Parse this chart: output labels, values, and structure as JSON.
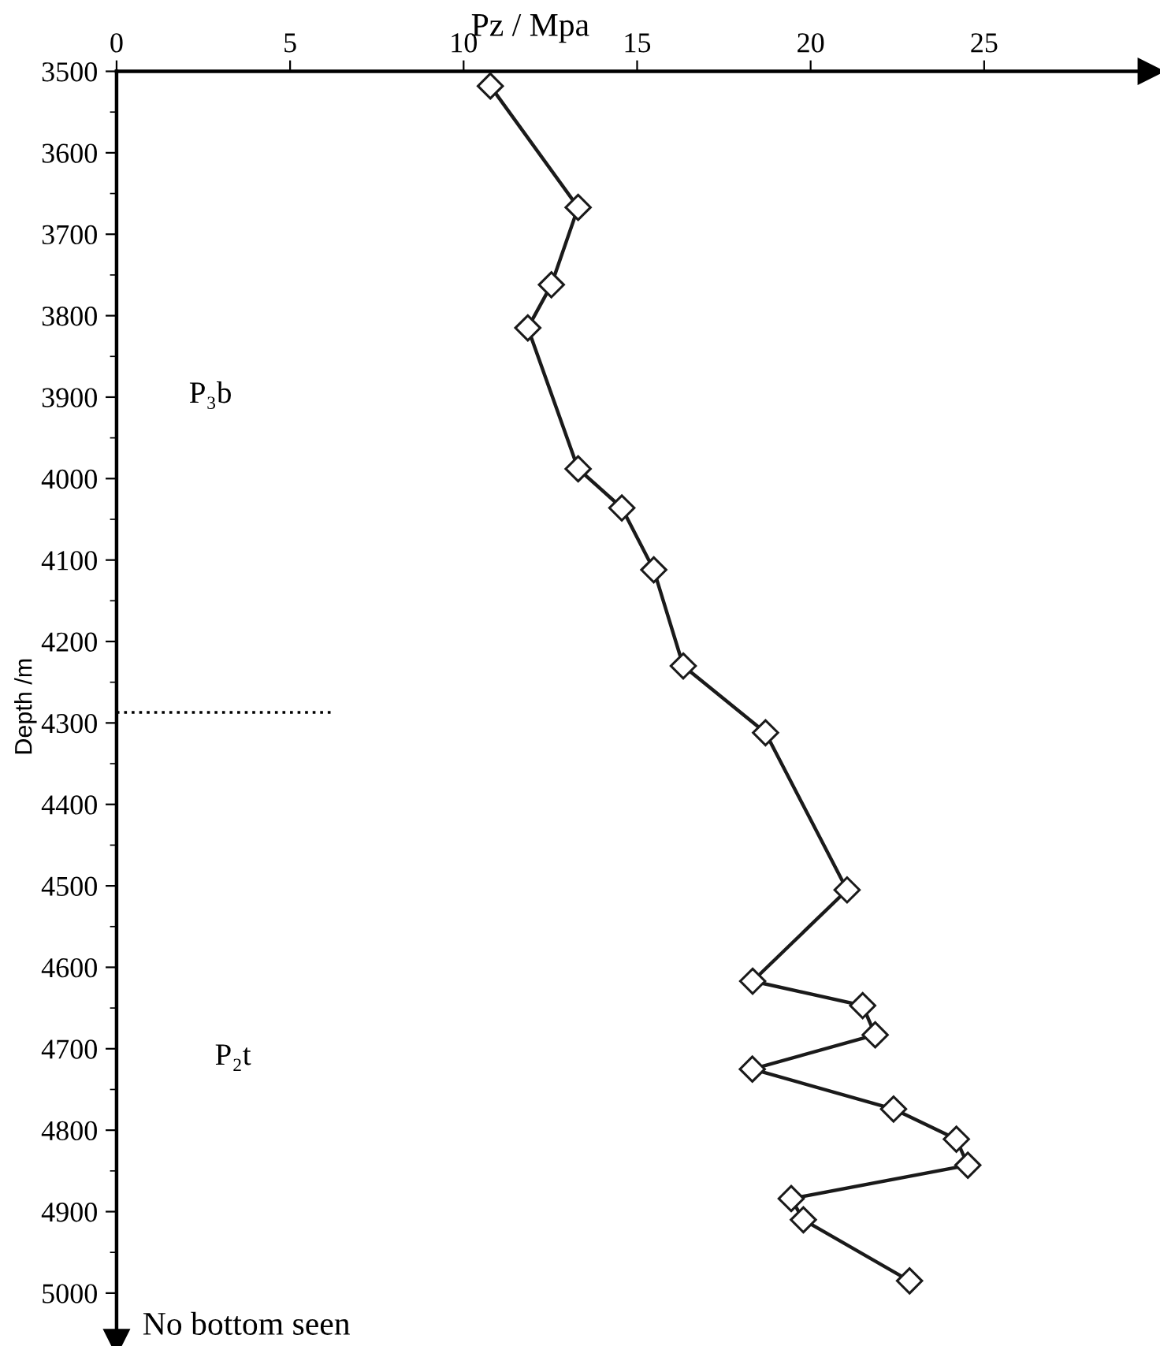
{
  "chart_data": {
    "type": "line",
    "xlabel": "Pz / Mpa",
    "ylabel": "Depth /m",
    "x": [
      10.77,
      13.3,
      12.53,
      11.85,
      13.3,
      14.56,
      15.48,
      16.33,
      18.7,
      21.05,
      18.33,
      21.5,
      21.86,
      18.32,
      22.39,
      24.2,
      24.53,
      19.44,
      19.79,
      22.85
    ],
    "values": [
      3518,
      3667,
      3762,
      3815,
      3988,
      4036,
      4112,
      4230,
      4312,
      4505,
      4617,
      4647,
      4683,
      4725,
      4774,
      4811,
      4843,
      4884,
      4910,
      4985
    ],
    "color": "#1a1a1a",
    "marker": "diamond",
    "line_style": "solid",
    "xlim": [
      0,
      29.8
    ],
    "xticks": [
      0,
      5,
      10,
      15,
      20,
      25
    ],
    "ylim": [
      5060,
      3500
    ],
    "yticks": [
      3500,
      3600,
      3700,
      3800,
      3900,
      4000,
      4100,
      4200,
      4300,
      4400,
      4500,
      4600,
      4700,
      4800,
      4900,
      5000
    ],
    "ref_lines": [
      {
        "axis": "y",
        "value": 4287,
        "line_style": "dotted",
        "color": "#000000"
      }
    ],
    "annotations": [
      "P₃b",
      "P₂t",
      "No bottom seen"
    ],
    "grid": false,
    "legend": false
  }
}
